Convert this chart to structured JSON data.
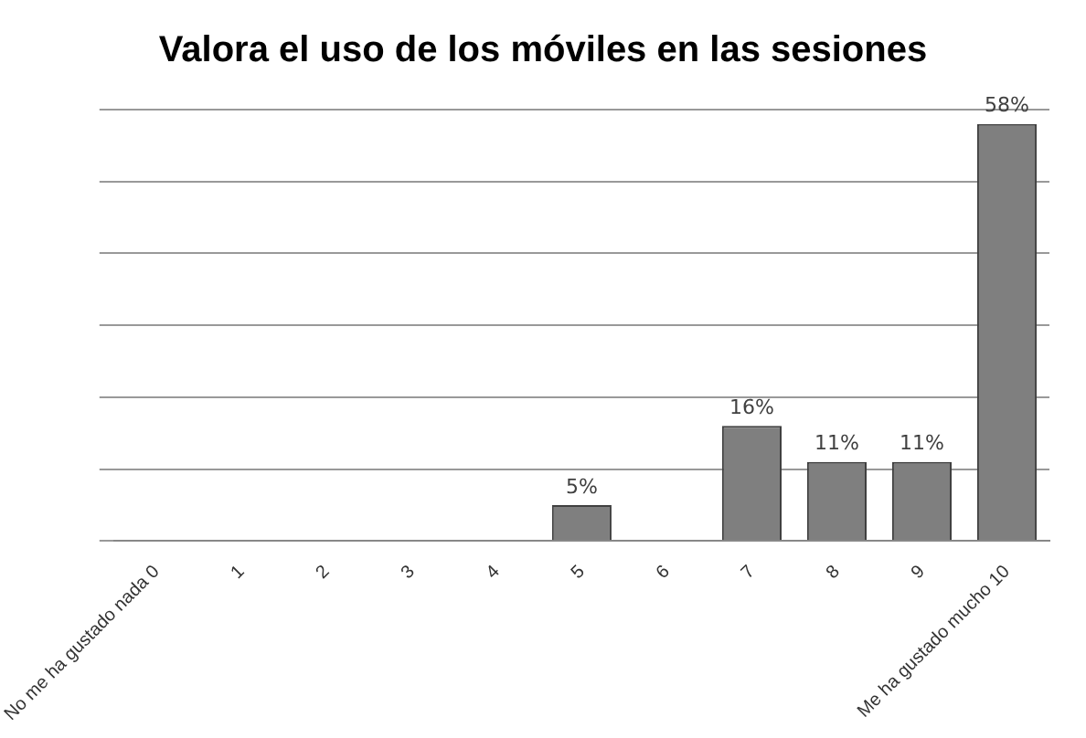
{
  "chart_data": {
    "type": "bar",
    "title": "Valora el uso de los móviles en las sesiones",
    "categories": [
      "No me ha gustado nada 0",
      "1",
      "2",
      "3",
      "4",
      "5",
      "6",
      "7",
      "8",
      "9",
      "Me ha gustado mucho 10"
    ],
    "values": [
      0,
      0,
      0,
      0,
      0,
      5,
      0,
      16,
      11,
      11,
      58
    ],
    "value_labels": [
      null,
      null,
      null,
      null,
      null,
      "5%",
      null,
      "16%",
      "11%",
      "11%",
      "58%"
    ],
    "color": "#7f7f7f",
    "ylim": [
      0,
      60
    ],
    "yticks": [
      {
        "value": 0,
        "label": null
      },
      {
        "value": 10,
        "label": null
      },
      {
        "value": 20,
        "label": null
      },
      {
        "value": 30,
        "label": null
      },
      {
        "value": 40,
        "label": null
      },
      {
        "value": 50,
        "label": null
      },
      {
        "value": 60,
        "label": null
      }
    ],
    "grid": "y",
    "tick_labels": "x"
  }
}
